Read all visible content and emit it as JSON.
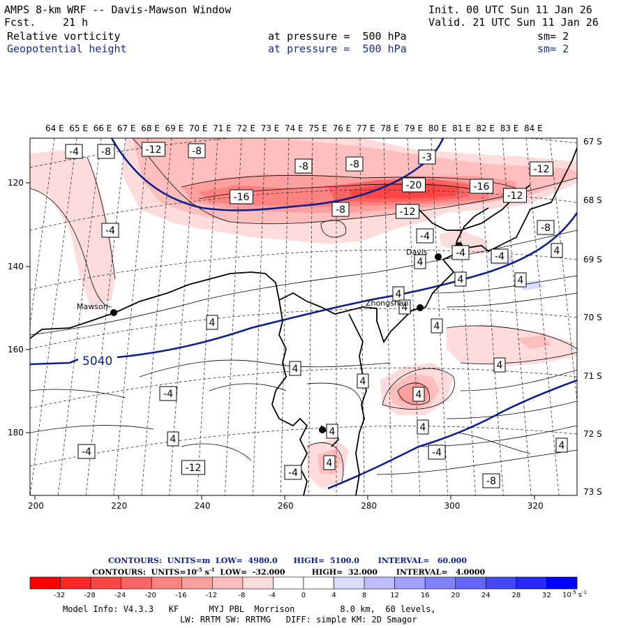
{
  "header": {
    "title": "AMPS 8-km WRF -- Davis-Mawson Window",
    "fcst_label": "Fcst.",
    "fcst_value": "21 h",
    "init": "Init. 00 UTC Sun 11 Jan 26",
    "valid": "Valid. 21 UTC Sun 11 Jan 26",
    "field1": {
      "name": "Relative vorticity",
      "level": "at pressure =  500 hPa",
      "smooth": "sm= 2"
    },
    "field2": {
      "name": "Geopotential height",
      "level": "at pressure =  500 hPa",
      "smooth": "sm= 2"
    }
  },
  "map": {
    "lon_labels": [
      "64 E",
      "65 E",
      "66 E",
      "67 E",
      "68 E",
      "69 E",
      "70 E",
      "71 E",
      "72 E",
      "73 E",
      "74 E",
      "75 E",
      "76 E",
      "77 E",
      "78 E",
      "79 E",
      "80 E",
      "81 E",
      "82 E",
      "83 E",
      "84 E"
    ],
    "lat_labels": [
      "67 S",
      "68 S",
      "69 S",
      "70 S",
      "71 S",
      "72 S",
      "73 S"
    ],
    "x_ticks": [
      "200",
      "220",
      "240",
      "260",
      "280",
      "300",
      "320"
    ],
    "y_ticks": [
      "120",
      "140",
      "160",
      "180"
    ],
    "stations": {
      "mawson": "Mawson",
      "davis": "Davis",
      "zhongshan": "Zhongshan"
    },
    "height_label": "5040",
    "vort_labels": [
      "-4",
      "-8",
      "-12",
      "-8",
      "-8",
      "-8",
      "-3",
      "-12",
      "-16",
      "-20",
      "-16",
      "-12",
      "-8",
      "-12",
      "-4",
      "-4",
      "-8",
      "-4",
      "-4",
      "4",
      "4",
      "4",
      "4",
      "4",
      "4",
      "4",
      "-4",
      "-4",
      "-12",
      "4",
      "4",
      "4",
      "4",
      "-4",
      "-8",
      "4",
      "-4",
      "4",
      "4",
      "4",
      "4",
      "4"
    ]
  },
  "footer": {
    "contours1": "CONTOURS:  UNITS=m  LOW=  4980.0      HIGH=  5100.0       INTERVAL=   60.000",
    "contours2_a": "CONTOURS:  UNITS=10",
    "contours2_exp": "-5",
    "contours2_b": " s",
    "contours2_exp2": "-1",
    "contours2_c": "  LOW=  -32.000          HIGH=  32.000       INTERVAL=   4.0000",
    "colorbar_labels": [
      "-32",
      "-28",
      "-24",
      "-20",
      "-16",
      "-12",
      "-8",
      "-4",
      "0",
      "4",
      "8",
      "12",
      "16",
      "20",
      "24",
      "28",
      "32"
    ],
    "colorbar_unit": "10",
    "colorbar_unit_exp": "-5",
    "colorbar_unit_s": " s",
    "colorbar_unit_exp2": "-1",
    "colorbar_colors": [
      "#ff0000",
      "#ff2828",
      "#ff4646",
      "#ff6464",
      "#ff8282",
      "#ffa0a0",
      "#ffbebe",
      "#ffdcdc",
      "#ffffff",
      "#ffffff",
      "#dcdcff",
      "#bebeff",
      "#a0a0ff",
      "#8282ff",
      "#6464ff",
      "#4646ff",
      "#2828ff",
      "#0000ff"
    ],
    "info1": "Model Info: V4.3.3   KF      MYJ PBL  Morrison         8.0 km,  60 levels,",
    "info2": "LW: RRTM SW: RRTMG   DIFF: simple KM: 2D Smagor"
  }
}
